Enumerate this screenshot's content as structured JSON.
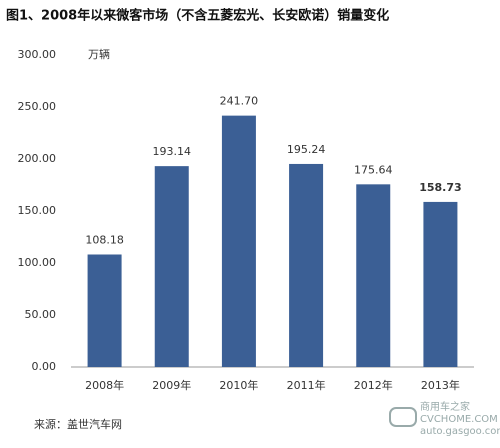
{
  "chart_data": {
    "type": "bar",
    "title": "图1、2008年以来微客市场（不含五菱宏光、长安欧诺）销量变化",
    "unit": "万辆",
    "source": "来源：盖世汽车网",
    "watermark": [
      "商用车之家",
      "CVCHOME.COM",
      "auto.gasgoo.com"
    ],
    "categories": [
      "2008年",
      "2009年",
      "2010年",
      "2011年",
      "2012年",
      "2013年"
    ],
    "values": [
      108.18,
      193.14,
      241.7,
      195.24,
      175.64,
      158.73
    ],
    "value_labels": [
      "108.18",
      "193.14",
      "241.70",
      "195.24",
      "175.64",
      "158.73"
    ],
    "color": "#3b5f95",
    "ylim": [
      0,
      300
    ],
    "yticks": [
      {
        "value": 0,
        "label": "0.00"
      },
      {
        "value": 50,
        "label": "50.00"
      },
      {
        "value": 100,
        "label": "100.00"
      },
      {
        "value": 150,
        "label": "150.00"
      },
      {
        "value": 200,
        "label": "200.00"
      },
      {
        "value": 250,
        "label": "250.00"
      },
      {
        "value": 300,
        "label": "300.00"
      }
    ],
    "grid": false
  }
}
